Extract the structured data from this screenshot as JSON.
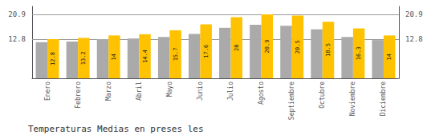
{
  "chart_data": {
    "type": "bar",
    "title": "Temperaturas Medias en preses les",
    "categories": [
      "Enero",
      "Febrero",
      "Marzo",
      "Abril",
      "Mayo",
      "Junio",
      "Julio",
      "Agosto",
      "Septiembre",
      "Octubre",
      "Noviembre",
      "Diciembre"
    ],
    "series": [
      {
        "color": "#AAAAAA",
        "values": [
          11.8,
          12.0,
          12.8,
          13.0,
          13.5,
          14.5,
          16.5,
          17.5,
          17.2,
          16.0,
          13.5,
          12.5
        ]
      },
      {
        "color": "#FFC200",
        "values": [
          12.8,
          13.2,
          14.0,
          14.4,
          15.7,
          17.6,
          20.0,
          20.9,
          20.5,
          18.5,
          16.3,
          14.0
        ],
        "data_labels": true
      }
    ],
    "ylim": [
      0,
      23.5
    ],
    "yticks": [
      12.8,
      20.9
    ],
    "y2lim": [
      0,
      23.5
    ],
    "y2ticks": [
      12.8,
      20.9
    ],
    "grid": true
  }
}
